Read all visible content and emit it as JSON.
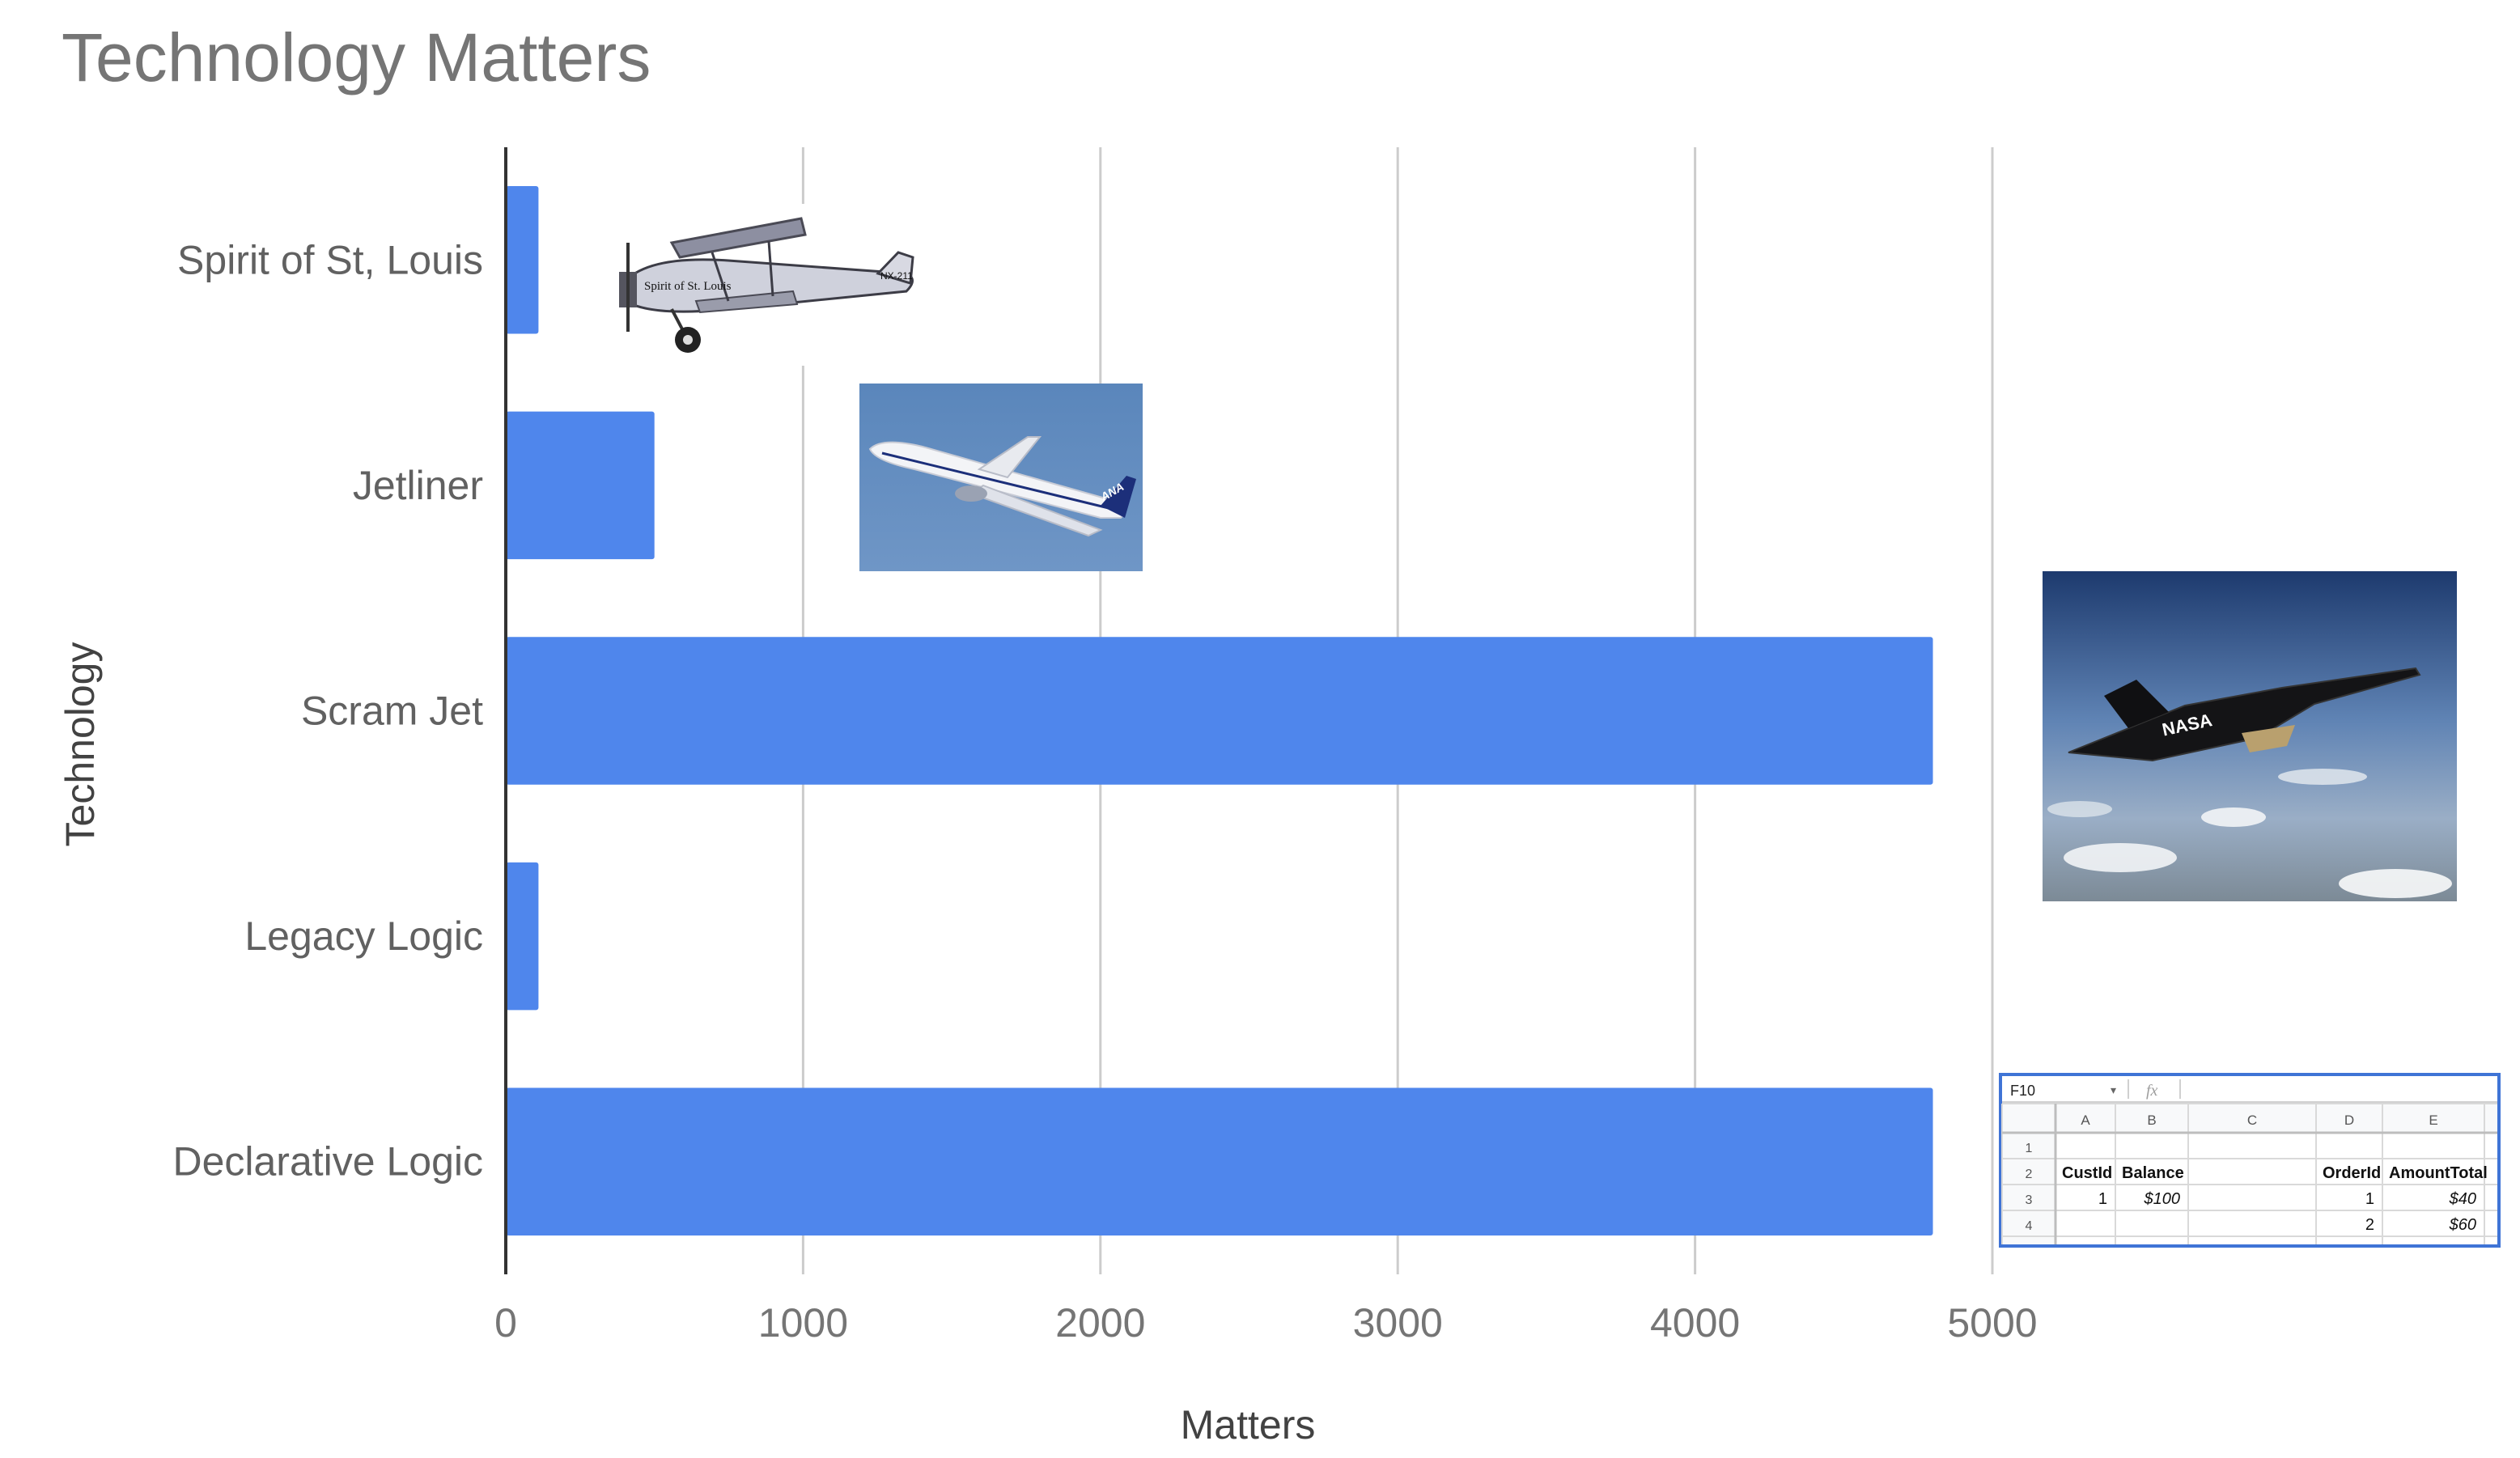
{
  "chart_data": {
    "type": "bar",
    "orientation": "horizontal",
    "title": "Technology Matters",
    "xlabel": "Matters",
    "ylabel": "Technology",
    "categories": [
      "Spirit of St, Louis",
      "Jetliner",
      "Scram Jet",
      "Legacy Logic",
      "Declarative Logic"
    ],
    "values": [
      110,
      500,
      4800,
      110,
      4800
    ],
    "xlim": [
      0,
      5000
    ],
    "xticks": [
      "0",
      "1000",
      "2000",
      "3000",
      "4000",
      "5000"
    ],
    "grid": true,
    "legend": "none",
    "colors": {
      "bar": "#4f86ec",
      "grid": "#cccccc",
      "axis": "#333333"
    }
  },
  "images": {
    "biplane": {
      "label": "Spirit of St. Louis",
      "markings": "NX-211"
    },
    "jetliner": {
      "label": "ANA"
    },
    "scramjet": {
      "label": "NASA"
    }
  },
  "spreadsheet": {
    "name_box": "F10",
    "fx": "fx",
    "columns": [
      "A",
      "B",
      "C",
      "D",
      "E"
    ],
    "rows": [
      {
        "num": "1",
        "cells": [
          "",
          "",
          "",
          "",
          ""
        ]
      },
      {
        "num": "2",
        "cells": [
          "CustId",
          "Balance",
          "",
          "OrderId",
          "AmountTotal"
        ]
      },
      {
        "num": "3",
        "cells": [
          "1",
          "$100",
          "",
          "1",
          "$40"
        ]
      },
      {
        "num": "4",
        "cells": [
          "",
          "",
          "",
          "2",
          "$60"
        ]
      }
    ]
  }
}
